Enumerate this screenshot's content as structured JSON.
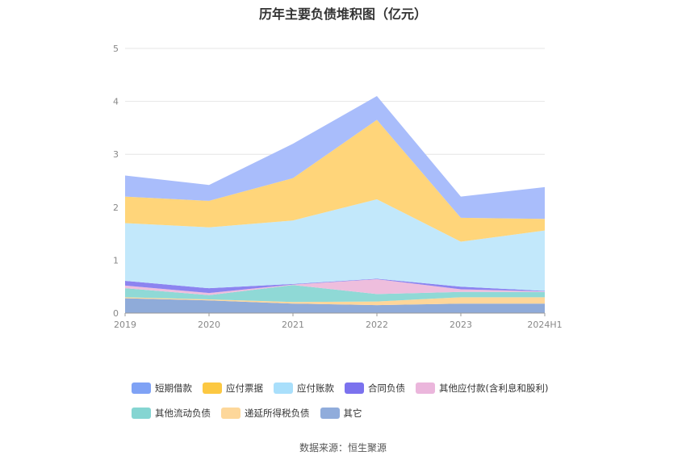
{
  "chart_data": {
    "type": "area",
    "stacked": true,
    "title": "历年主要负债堆积图（亿元）",
    "categories": [
      "2019",
      "2020",
      "2021",
      "2022",
      "2023",
      "2024H1"
    ],
    "ylim": [
      0,
      5
    ],
    "yticks": [
      "0",
      "1",
      "2",
      "3",
      "4",
      "5"
    ],
    "grid": true,
    "legend_position": "bottom",
    "series": [
      {
        "name": "其它",
        "color": "#8fabd9",
        "values": [
          0.28,
          0.24,
          0.18,
          0.15,
          0.18,
          0.18
        ]
      },
      {
        "name": "递延所得税负债",
        "color": "#ffd699",
        "values": [
          0.02,
          0.02,
          0.03,
          0.07,
          0.12,
          0.12
        ]
      },
      {
        "name": "其他流动负债",
        "color": "#8fd9d6",
        "values": [
          0.17,
          0.08,
          0.32,
          0.14,
          0.1,
          0.1
        ]
      },
      {
        "name": "其他应付款(含利息和股利)",
        "color": "#eebedd",
        "values": [
          0.05,
          0.04,
          0.01,
          0.28,
          0.05,
          0.01
        ]
      },
      {
        "name": "合同负债",
        "color": "#8c84f0",
        "values": [
          0.09,
          0.09,
          0.01,
          0.01,
          0.05,
          0.01
        ]
      },
      {
        "name": "应付账款",
        "color": "#c2e8fb",
        "values": [
          1.09,
          1.15,
          1.2,
          1.5,
          0.85,
          1.14
        ]
      },
      {
        "name": "应付票据",
        "color": "#ffd57a",
        "values": [
          0.5,
          0.5,
          0.8,
          1.5,
          0.45,
          0.22
        ]
      },
      {
        "name": "短期借款",
        "color": "#a9bdfb",
        "values": [
          0.4,
          0.3,
          0.65,
          0.45,
          0.4,
          0.6
        ]
      }
    ]
  },
  "legend": [
    {
      "label": "短期借款",
      "color": "#7fa2f5"
    },
    {
      "label": "应付票据",
      "color": "#fcc842"
    },
    {
      "label": "应付账款",
      "color": "#a9dffb"
    },
    {
      "label": "合同负债",
      "color": "#7b72ee"
    },
    {
      "label": "其他应付款(含利息和股利)",
      "color": "#ebb6dc"
    },
    {
      "label": "其他流动负债",
      "color": "#85d5d2"
    },
    {
      "label": "递延所得税负债",
      "color": "#fdd79a"
    },
    {
      "label": "其它",
      "color": "#90acdb"
    }
  ],
  "source": "数据来源：恒生聚源"
}
